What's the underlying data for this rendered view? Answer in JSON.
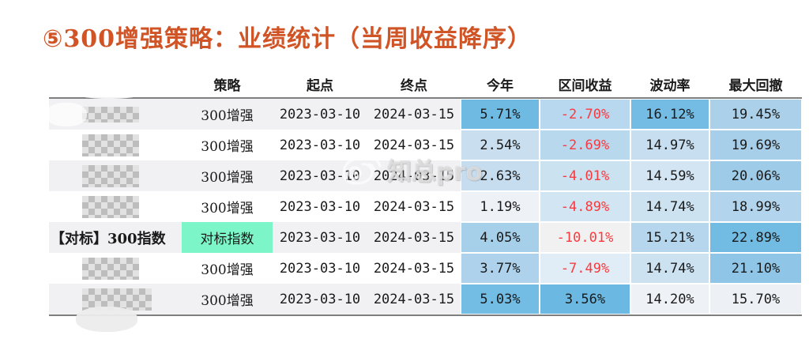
{
  "title": "⑤300增强策略：业绩统计（当周收益降序）",
  "watermark": {
    "text": "知总pro",
    "icon": "weibo-eye-icon"
  },
  "colors": {
    "title": "#d05425",
    "negative_text": "#fa3a3e",
    "default_text": "#1a1a1a",
    "benchmark_highlight": "#7cf6c8",
    "table_border": "#7f7f7f",
    "row_stripe": "#f1f1f3"
  },
  "table": {
    "columns": [
      {
        "key": "name",
        "label": ""
      },
      {
        "key": "strategy",
        "label": "策略"
      },
      {
        "key": "start",
        "label": "起点"
      },
      {
        "key": "end",
        "label": "终点"
      },
      {
        "key": "ytd",
        "label": "今年"
      },
      {
        "key": "interval",
        "label": "区间收益"
      },
      {
        "key": "vol",
        "label": "波动率"
      },
      {
        "key": "mdd",
        "label": "最大回撤"
      }
    ],
    "rows": [
      {
        "name": "",
        "name_masked": true,
        "strategy": "300增强",
        "strategy_highlight": false,
        "start": "2023-03-10",
        "end": "2024-03-15",
        "ytd": {
          "text": "5.71%",
          "bg": "#6ebae3",
          "color": "#1a1a1a"
        },
        "interval": {
          "text": "-2.70%",
          "bg": "#b7d8ee",
          "color": "#fa3a3e"
        },
        "vol": {
          "text": "16.12%",
          "bg": "#74bce4",
          "color": "#1a1a1a"
        },
        "mdd": {
          "text": "19.45%",
          "bg": "#abd1ea",
          "color": "#1a1a1a"
        }
      },
      {
        "name": "",
        "name_masked": true,
        "strategy": "300增强",
        "strategy_highlight": false,
        "start": "2023-03-10",
        "end": "2024-03-15",
        "ytd": {
          "text": "2.54%",
          "bg": "#c9dff0",
          "color": "#1a1a1a"
        },
        "interval": {
          "text": "-2.69%",
          "bg": "#b8d8ee",
          "color": "#fa3a3e"
        },
        "vol": {
          "text": "14.97%",
          "bg": "#c7def0",
          "color": "#1a1a1a"
        },
        "mdd": {
          "text": "19.69%",
          "bg": "#a7cfe9",
          "color": "#1a1a1a"
        }
      },
      {
        "name": "",
        "name_masked": true,
        "strategy": "300增强",
        "strategy_highlight": false,
        "start": "2023-03-10",
        "end": "2024-03-15",
        "ytd": {
          "text": "2.63%",
          "bg": "#c6ddef",
          "color": "#1a1a1a"
        },
        "interval": {
          "text": "-4.01%",
          "bg": "#cbe2f1",
          "color": "#fa3a3e"
        },
        "vol": {
          "text": "14.59%",
          "bg": "#d3e5f3",
          "color": "#1a1a1a"
        },
        "mdd": {
          "text": "20.06%",
          "bg": "#9ecbe8",
          "color": "#1a1a1a"
        }
      },
      {
        "name": "",
        "name_masked": true,
        "strategy": "300增强",
        "strategy_highlight": false,
        "start": "2023-03-10",
        "end": "2024-03-15",
        "ytd": {
          "text": "1.19%",
          "bg": "#eef2f6",
          "color": "#1a1a1a"
        },
        "interval": {
          "text": "-4.89%",
          "bg": "#d1e5f3",
          "color": "#fa3a3e"
        },
        "vol": {
          "text": "14.74%",
          "bg": "#cce2f1",
          "color": "#1a1a1a"
        },
        "mdd": {
          "text": "18.99%",
          "bg": "#b2d4ec",
          "color": "#1a1a1a"
        }
      },
      {
        "name": "【对标】300指数",
        "name_masked": false,
        "strategy": "对标指数",
        "strategy_highlight": true,
        "start": "2023-03-10",
        "end": "2024-03-15",
        "ytd": {
          "text": "4.05%",
          "bg": "#a6cfe9",
          "color": "#1a1a1a"
        },
        "interval": {
          "text": "-10.01%",
          "bg": "#f2f1f1",
          "color": "#fa3a3e"
        },
        "vol": {
          "text": "15.21%",
          "bg": "#b5d6ed",
          "color": "#1a1a1a"
        },
        "mdd": {
          "text": "22.89%",
          "bg": "#72bbe3",
          "color": "#1a1a1a"
        }
      },
      {
        "name": "",
        "name_masked": true,
        "strategy": "300增强",
        "strategy_highlight": false,
        "start": "2023-03-10",
        "end": "2024-03-15",
        "ytd": {
          "text": "3.77%",
          "bg": "#aed2eb",
          "color": "#1a1a1a"
        },
        "interval": {
          "text": "-7.49%",
          "bg": "#e0edf7",
          "color": "#fa3a3e"
        },
        "vol": {
          "text": "14.74%",
          "bg": "#cce2f1",
          "color": "#1a1a1a"
        },
        "mdd": {
          "text": "21.10%",
          "bg": "#8fc5e6",
          "color": "#1a1a1a"
        }
      },
      {
        "name": "",
        "name_masked": true,
        "strategy": "300增强",
        "strategy_highlight": false,
        "start": "2023-03-10",
        "end": "2024-03-15",
        "ytd": {
          "text": "5.03%",
          "bg": "#73bce3",
          "color": "#1a1a1a"
        },
        "interval": {
          "text": "3.56%",
          "bg": "#6bb8e2",
          "color": "#1a1a1a"
        },
        "vol": {
          "text": "14.20%",
          "bg": "#eef1f5",
          "color": "#1a1a1a"
        },
        "mdd": {
          "text": "15.70%",
          "bg": "#edf1f5",
          "color": "#1a1a1a"
        }
      }
    ]
  }
}
